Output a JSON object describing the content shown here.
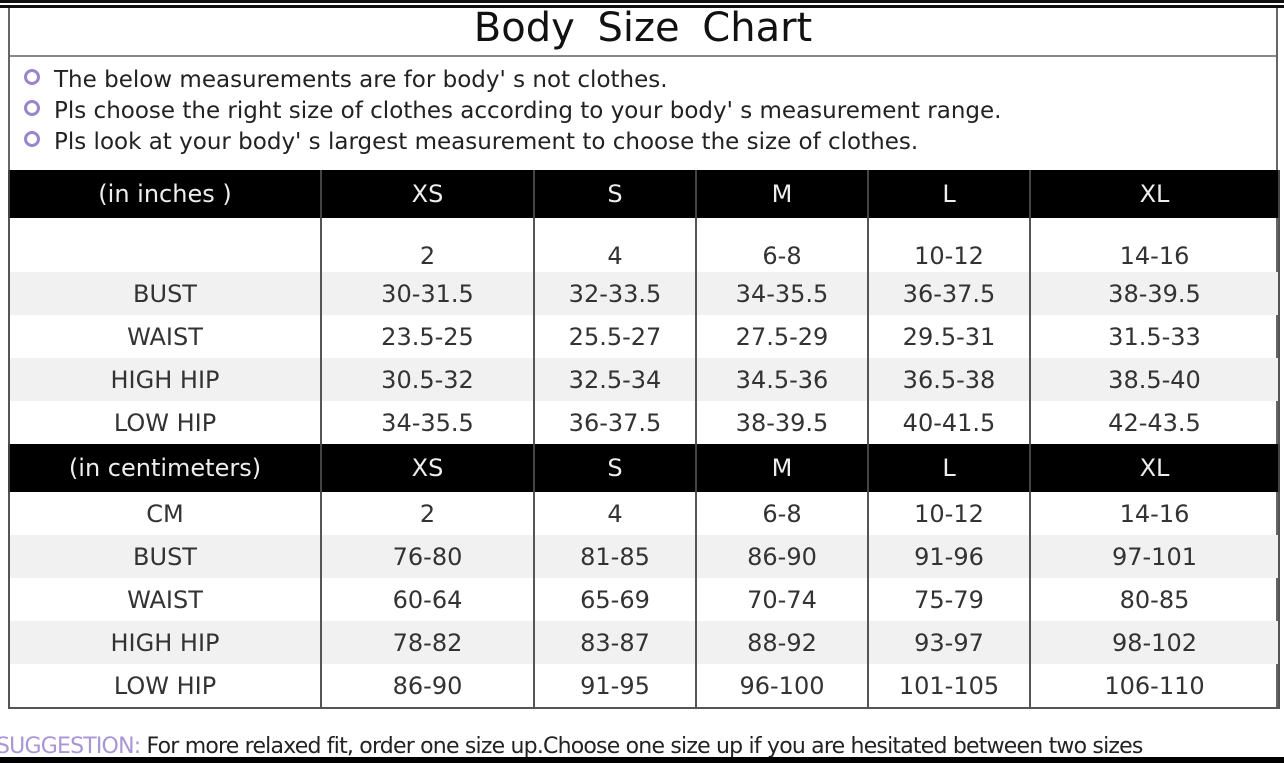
{
  "title": "Body  Size  Chart",
  "notes": [
    "The below measurements are for  body' s not clothes.",
    "Pls choose the right size of clothes according to your body' s  measurement range.",
    "Pls look  at your body' s  largest measurement to choose the size of clothes."
  ],
  "accent_color": "#a896d6",
  "inches": {
    "header": [
      "(in  inches )",
      "XS",
      "S",
      "M",
      "L",
      "XL"
    ],
    "rows": [
      [
        "",
        "2",
        "4",
        "6-8",
        "10-12",
        "14-16"
      ],
      [
        "BUST",
        "30-31.5",
        "32-33.5",
        "34-35.5",
        "36-37.5",
        "38-39.5"
      ],
      [
        "WAIST",
        "23.5-25",
        "25.5-27",
        "27.5-29",
        "29.5-31",
        "31.5-33"
      ],
      [
        "HIGH HIP",
        "30.5-32",
        "32.5-34",
        "34.5-36",
        "36.5-38",
        "38.5-40"
      ],
      [
        "LOW HIP",
        "34-35.5",
        "36-37.5",
        "38-39.5",
        "40-41.5",
        "42-43.5"
      ]
    ]
  },
  "cm": {
    "header": [
      "(in centimeters)",
      "XS",
      "S",
      "M",
      "L",
      "XL"
    ],
    "rows": [
      [
        "CM",
        "2",
        "4",
        "6-8",
        "10-12",
        "14-16"
      ],
      [
        "BUST",
        "76-80",
        "81-85",
        "86-90",
        "91-96",
        "97-101"
      ],
      [
        "WAIST",
        "60-64",
        "65-69",
        "70-74",
        "75-79",
        "80-85"
      ],
      [
        "HIGH HIP",
        "78-82",
        "83-87",
        "88-92",
        "93-97",
        "98-102"
      ],
      [
        "LOW HIP",
        "86-90",
        "91-95",
        "96-100",
        "101-105",
        "106-110"
      ]
    ]
  },
  "suggestion": {
    "label": "SUGGESTION:",
    "text": " For more relaxed fit, order one size up.Choose one size up if you are hesitated between two sizes"
  }
}
